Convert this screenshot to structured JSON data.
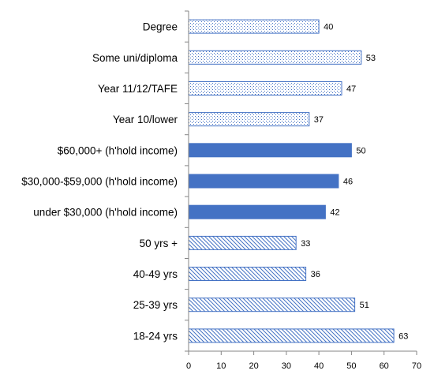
{
  "chart_data": {
    "type": "bar",
    "orientation": "horizontal",
    "categories": [
      "Degree",
      "Some uni/diploma",
      "Year 11/12/TAFE",
      "Year 10/lower",
      "$60,000+ (h'hold income)",
      "$30,000-$59,000 (h'hold income)",
      "under $30,000 (h'hold income)",
      "50 yrs +",
      "40-49 yrs",
      "25-39 yrs",
      "18-24 yrs"
    ],
    "values": [
      40,
      53,
      47,
      37,
      50,
      46,
      42,
      33,
      36,
      51,
      63
    ],
    "fill_styles": [
      "dots",
      "dots",
      "dots",
      "dots",
      "solid",
      "solid",
      "solid",
      "hatch",
      "hatch",
      "hatch",
      "hatch"
    ],
    "title": "",
    "xlabel": "",
    "ylabel": "",
    "xlim": [
      0,
      70
    ],
    "xticks": [
      0,
      10,
      20,
      30,
      40,
      50,
      60,
      70
    ],
    "grid": false,
    "legend": "none",
    "colors": {
      "bar": "#4472C4",
      "axis": "#868686"
    }
  }
}
